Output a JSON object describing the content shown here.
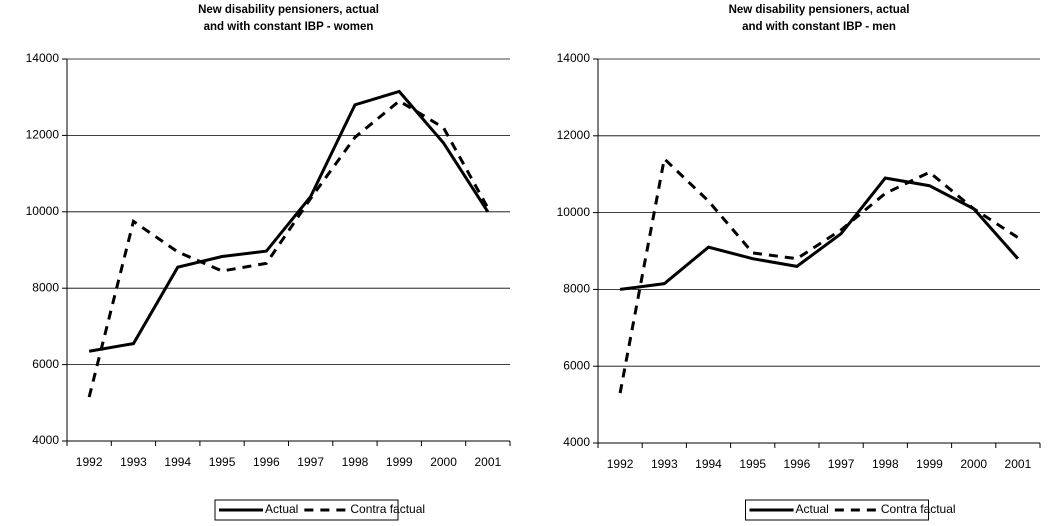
{
  "chart_data": [
    {
      "type": "line",
      "title": [
        "New disability pensioners, actual",
        "and with constant IBP - women"
      ],
      "categories": [
        "1992",
        "1993",
        "1994",
        "1995",
        "1996",
        "1997",
        "1998",
        "1999",
        "2000",
        "2001"
      ],
      "series": [
        {
          "name": "Actual",
          "color": "#000000",
          "dash": "solid",
          "values": [
            6350,
            6550,
            8550,
            8830,
            8970,
            10400,
            12800,
            13150,
            11800,
            10000
          ]
        },
        {
          "name": "Contra factual",
          "color": "#000000",
          "dash": "dashed",
          "values": [
            5150,
            9750,
            8950,
            8450,
            8650,
            10350,
            11950,
            12900,
            12200,
            10100
          ]
        }
      ],
      "ylim": [
        4000,
        14000
      ],
      "yticks": [
        4000,
        6000,
        8000,
        10000,
        12000,
        14000
      ],
      "grid": true,
      "legend": "bottom"
    },
    {
      "type": "line",
      "title": [
        "New disability pensioners, actual",
        "and with constant IBP  - men"
      ],
      "categories": [
        "1992",
        "1993",
        "1994",
        "1995",
        "1996",
        "1997",
        "1998",
        "1999",
        "2000",
        "2001"
      ],
      "series": [
        {
          "name": "Actual",
          "color": "#000000",
          "dash": "solid",
          "values": [
            8000,
            8150,
            9100,
            8800,
            8600,
            9450,
            10900,
            10700,
            10100,
            8800
          ]
        },
        {
          "name": "Contra factual",
          "color": "#000000",
          "dash": "dashed",
          "values": [
            5300,
            11400,
            10300,
            8950,
            8800,
            9550,
            10500,
            11050,
            10100,
            9350
          ]
        }
      ],
      "ylim": [
        4000,
        14000
      ],
      "yticks": [
        4000,
        6000,
        8000,
        10000,
        12000,
        14000
      ],
      "grid": true,
      "legend": "bottom"
    }
  ]
}
